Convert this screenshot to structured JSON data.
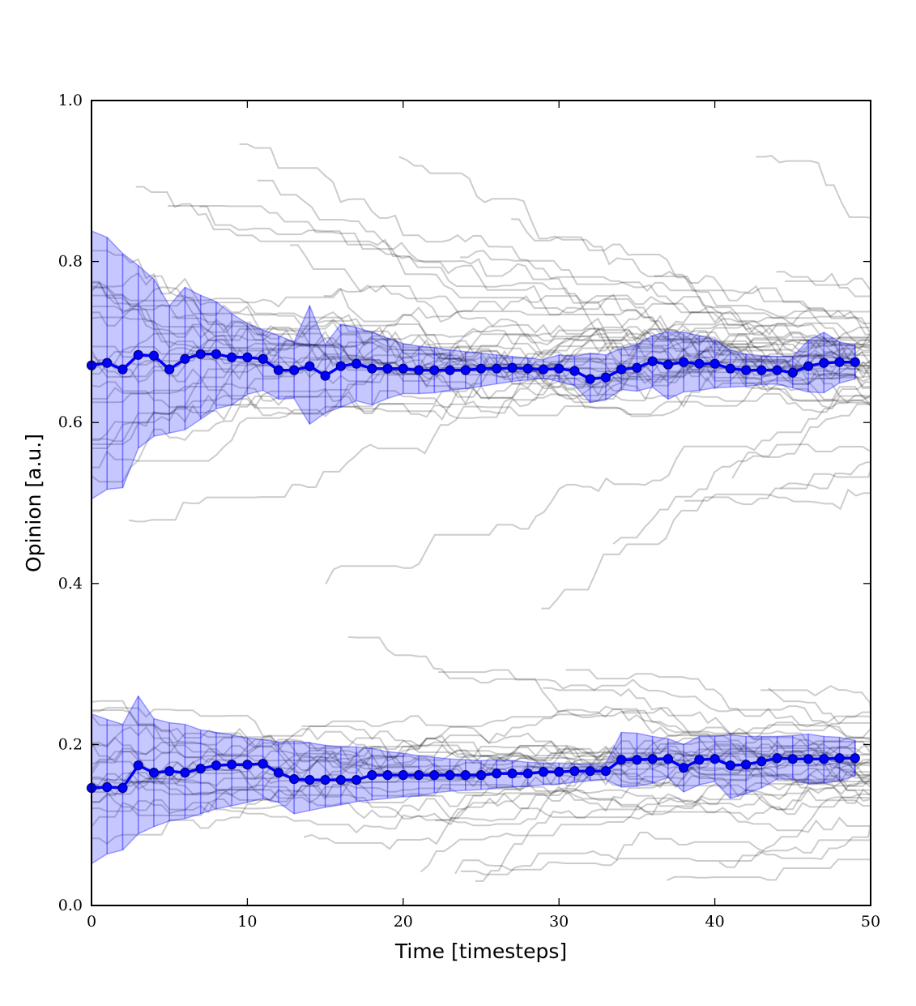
{
  "chart_data": {
    "type": "line",
    "title": "",
    "xlabel": "Time [timesteps]",
    "ylabel": "Opinion [a.u.]",
    "xlim": [
      0,
      50
    ],
    "ylim": [
      0.0,
      1.0
    ],
    "x_ticks": [
      0,
      10,
      20,
      30,
      40,
      50
    ],
    "x_tick_labels": [
      "0",
      "10",
      "20",
      "30",
      "40",
      "50"
    ],
    "y_ticks": [
      0.0,
      0.2,
      0.4,
      0.6,
      0.8,
      1.0
    ],
    "y_tick_labels": [
      "0.0",
      "0.2",
      "0.4",
      "0.6",
      "0.8",
      "1.0"
    ],
    "grid": false,
    "colors": {
      "mean_line": "#0000ff",
      "mean_marker_edge": "#000080",
      "band_fill": "#0000ff",
      "trajectory": "#000000"
    },
    "x": [
      0,
      1,
      2,
      3,
      4,
      5,
      6,
      7,
      8,
      9,
      10,
      11,
      12,
      13,
      14,
      15,
      16,
      17,
      18,
      19,
      20,
      21,
      22,
      23,
      24,
      25,
      26,
      27,
      28,
      29,
      30,
      31,
      32,
      33,
      34,
      35,
      36,
      37,
      38,
      39,
      40,
      41,
      42,
      43,
      44,
      45,
      46,
      47,
      48,
      49
    ],
    "series": [
      {
        "mean": [
          0.671,
          0.674,
          0.666,
          0.684,
          0.683,
          0.666,
          0.679,
          0.685,
          0.685,
          0.681,
          0.681,
          0.679,
          0.665,
          0.665,
          0.67,
          0.658,
          0.67,
          0.673,
          0.667,
          0.667,
          0.667,
          0.665,
          0.665,
          0.665,
          0.665,
          0.667,
          0.667,
          0.668,
          0.667,
          0.666,
          0.667,
          0.664,
          0.654,
          0.656,
          0.666,
          0.668,
          0.676,
          0.672,
          0.675,
          0.673,
          0.673,
          0.667,
          0.665,
          0.665,
          0.665,
          0.662,
          0.67,
          0.674,
          0.675,
          0.675
        ],
        "upper": [
          0.838,
          0.83,
          0.81,
          0.795,
          0.778,
          0.745,
          0.768,
          0.758,
          0.75,
          0.735,
          0.723,
          0.715,
          0.708,
          0.7,
          0.745,
          0.697,
          0.722,
          0.718,
          0.712,
          0.705,
          0.698,
          0.695,
          0.693,
          0.69,
          0.688,
          0.686,
          0.684,
          0.682,
          0.68,
          0.678,
          0.684,
          0.682,
          0.686,
          0.684,
          0.692,
          0.697,
          0.708,
          0.713,
          0.712,
          0.708,
          0.703,
          0.69,
          0.685,
          0.683,
          0.682,
          0.682,
          0.702,
          0.712,
          0.7,
          0.696
        ],
        "lower": [
          0.505,
          0.517,
          0.519,
          0.568,
          0.583,
          0.587,
          0.591,
          0.604,
          0.617,
          0.622,
          0.635,
          0.64,
          0.629,
          0.63,
          0.598,
          0.612,
          0.619,
          0.627,
          0.622,
          0.63,
          0.636,
          0.636,
          0.637,
          0.64,
          0.642,
          0.645,
          0.648,
          0.651,
          0.653,
          0.655,
          0.651,
          0.646,
          0.625,
          0.628,
          0.641,
          0.639,
          0.644,
          0.629,
          0.638,
          0.64,
          0.643,
          0.644,
          0.645,
          0.647,
          0.648,
          0.643,
          0.638,
          0.637,
          0.649,
          0.654
        ]
      },
      {
        "mean": [
          0.146,
          0.147,
          0.146,
          0.174,
          0.165,
          0.167,
          0.165,
          0.17,
          0.174,
          0.175,
          0.175,
          0.176,
          0.165,
          0.157,
          0.156,
          0.156,
          0.156,
          0.156,
          0.162,
          0.162,
          0.162,
          0.162,
          0.162,
          0.162,
          0.162,
          0.162,
          0.164,
          0.164,
          0.164,
          0.166,
          0.166,
          0.167,
          0.167,
          0.167,
          0.181,
          0.181,
          0.182,
          0.182,
          0.171,
          0.181,
          0.182,
          0.174,
          0.175,
          0.179,
          0.183,
          0.182,
          0.182,
          0.182,
          0.183,
          0.183
        ],
        "upper": [
          0.238,
          0.231,
          0.225,
          0.26,
          0.232,
          0.227,
          0.225,
          0.218,
          0.215,
          0.212,
          0.208,
          0.206,
          0.203,
          0.204,
          0.202,
          0.199,
          0.197,
          0.197,
          0.195,
          0.191,
          0.189,
          0.186,
          0.184,
          0.182,
          0.181,
          0.18,
          0.181,
          0.18,
          0.178,
          0.177,
          0.177,
          0.176,
          0.176,
          0.176,
          0.215,
          0.214,
          0.21,
          0.207,
          0.2,
          0.21,
          0.21,
          0.212,
          0.21,
          0.21,
          0.21,
          0.211,
          0.213,
          0.21,
          0.209,
          0.205
        ],
        "lower": [
          0.052,
          0.064,
          0.069,
          0.089,
          0.098,
          0.105,
          0.108,
          0.114,
          0.12,
          0.124,
          0.128,
          0.133,
          0.128,
          0.114,
          0.118,
          0.122,
          0.125,
          0.129,
          0.131,
          0.133,
          0.135,
          0.136,
          0.14,
          0.142,
          0.143,
          0.144,
          0.146,
          0.147,
          0.148,
          0.15,
          0.151,
          0.153,
          0.155,
          0.157,
          0.147,
          0.148,
          0.152,
          0.159,
          0.141,
          0.15,
          0.154,
          0.133,
          0.139,
          0.146,
          0.157,
          0.157,
          0.151,
          0.152,
          0.155,
          0.161
        ]
      }
    ]
  }
}
